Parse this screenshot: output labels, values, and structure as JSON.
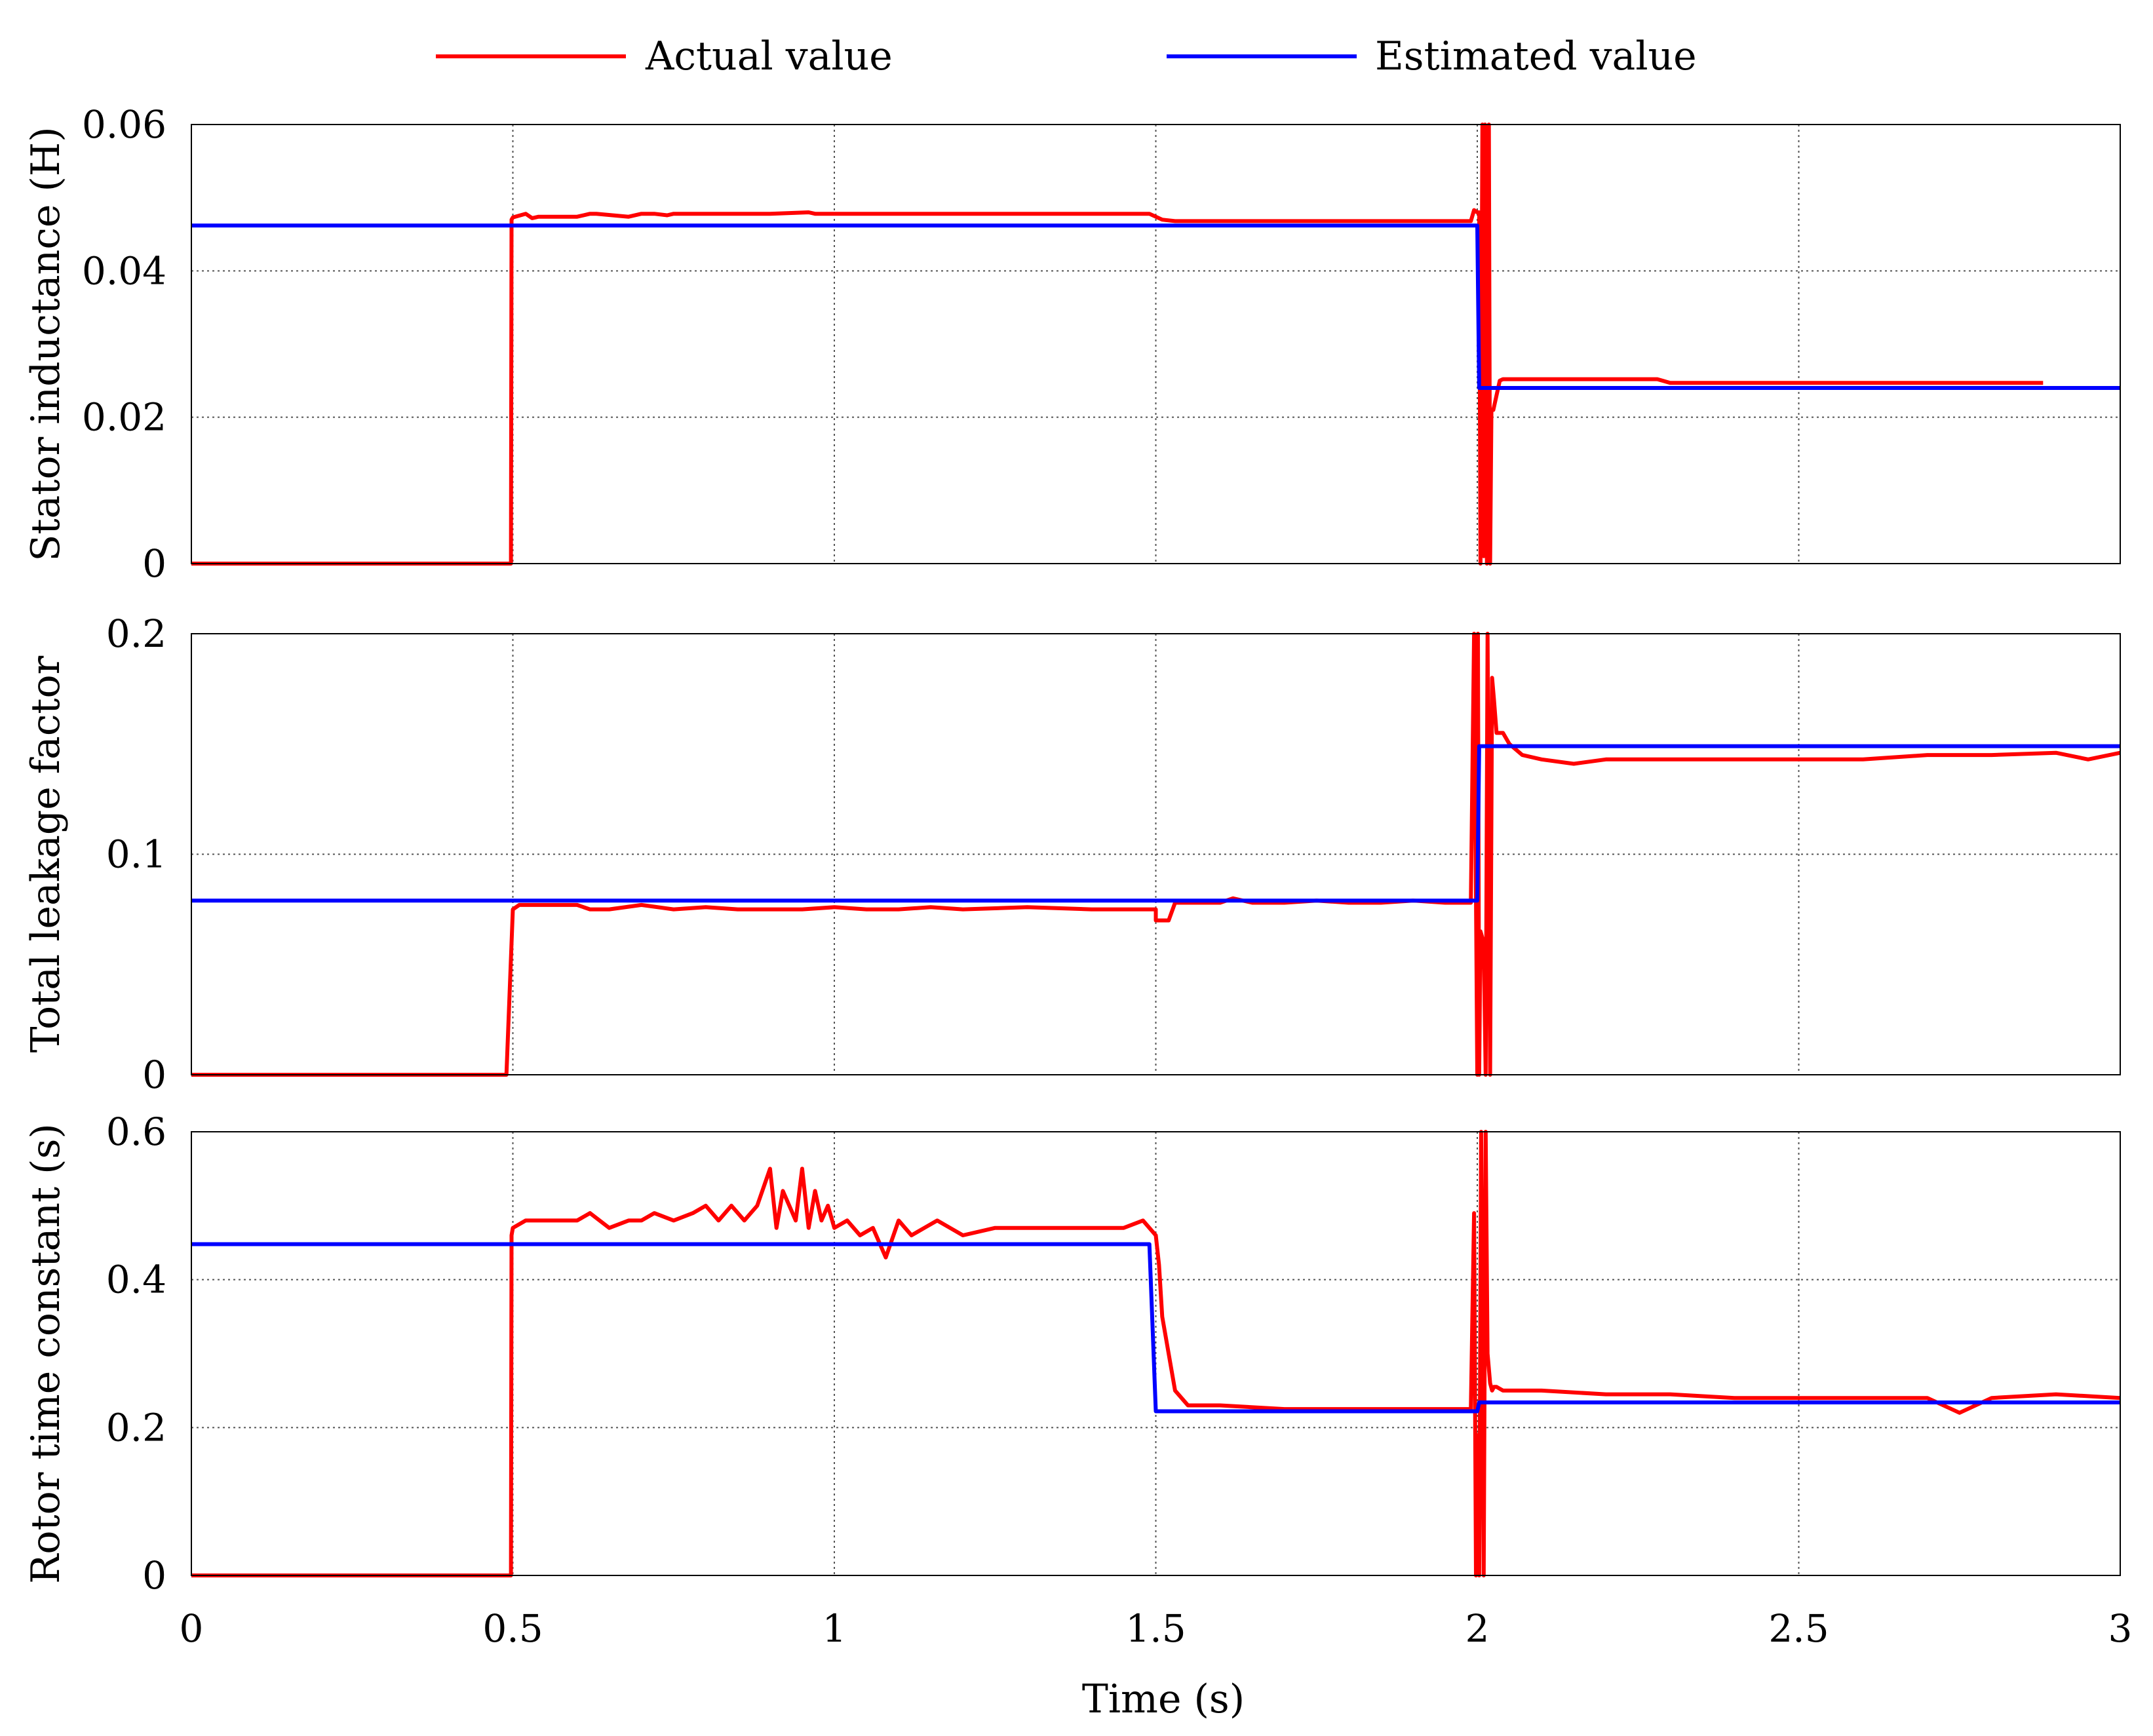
{
  "legend": {
    "actual_label": "Actual value",
    "estimated_label": "Estimated value"
  },
  "colors": {
    "actual": "#ff0000",
    "estimated": "#0000ff",
    "grid": "#555555",
    "frame": "#000000"
  },
  "xaxis": {
    "label": "Time  (s)",
    "ticks": [
      "0",
      "0.5",
      "1",
      "1.5",
      "2",
      "2.5",
      "3"
    ],
    "tick_values": [
      0,
      0.5,
      1,
      1.5,
      2,
      2.5,
      3
    ],
    "range": [
      0,
      3
    ]
  },
  "chart_data": [
    {
      "type": "line",
      "ylabel": "Stator inductance (H)",
      "ylim": [
        0,
        0.06
      ],
      "yticks": [
        "0",
        "0.02",
        "0.04",
        "0.06"
      ],
      "ytick_values": [
        0,
        0.02,
        0.04,
        0.06
      ],
      "grid": true,
      "series": [
        {
          "name": "Actual value",
          "x": [
            0,
            0.497,
            0.498,
            0.5,
            0.52,
            0.53,
            0.54,
            0.55,
            0.6,
            0.62,
            0.63,
            0.68,
            0.7,
            0.72,
            0.74,
            0.75,
            0.8,
            0.9,
            0.96,
            0.97,
            0.98,
            1.2,
            1.4,
            1.49,
            1.5,
            1.51,
            1.53,
            1.6,
            1.8,
            1.99,
            1.995,
            2.0,
            2.003,
            2.005,
            2.008,
            2.01,
            2.012,
            2.015,
            2.018,
            2.02,
            2.022,
            2.025,
            2.03,
            2.035,
            2.04,
            2.1,
            2.28,
            2.3,
            2.6,
            2.88
          ],
          "y": [
            0,
            0,
            0.047,
            0.0473,
            0.0478,
            0.0472,
            0.0474,
            0.0474,
            0.0474,
            0.0478,
            0.0478,
            0.0474,
            0.0478,
            0.0478,
            0.0476,
            0.0478,
            0.0478,
            0.0478,
            0.048,
            0.0478,
            0.0478,
            0.0478,
            0.0478,
            0.0478,
            0.0474,
            0.047,
            0.0468,
            0.0468,
            0.0468,
            0.0468,
            0.0483,
            0.048,
            0.048,
            0.0,
            0.06,
            0.001,
            0.06,
            0.0,
            0.06,
            0.0,
            0.021,
            0.021,
            0.023,
            0.025,
            0.0252,
            0.0252,
            0.0252,
            0.0247,
            0.0247,
            0.0247
          ]
        },
        {
          "name": "Estimated value",
          "x": [
            0,
            2.0,
            2.003,
            3.0
          ],
          "y": [
            0.0462,
            0.0462,
            0.024,
            0.024
          ]
        }
      ]
    },
    {
      "type": "line",
      "ylabel": "Total leakage factor",
      "ylim": [
        0,
        0.2
      ],
      "yticks": [
        "0",
        "0.1",
        "0.2"
      ],
      "ytick_values": [
        0,
        0.1,
        0.2
      ],
      "grid": true,
      "series": [
        {
          "name": "Actual value",
          "x": [
            0,
            0.49,
            0.5,
            0.51,
            0.6,
            0.62,
            0.65,
            0.7,
            0.75,
            0.8,
            0.85,
            0.9,
            0.95,
            1.0,
            1.05,
            1.1,
            1.15,
            1.2,
            1.3,
            1.4,
            1.5,
            1.5,
            1.52,
            1.53,
            1.55,
            1.6,
            1.62,
            1.65,
            1.7,
            1.75,
            1.8,
            1.85,
            1.9,
            1.95,
            1.99,
            1.995,
            2.0,
            2.001,
            2.003,
            2.005,
            2.01,
            2.013,
            2.016,
            2.02,
            2.023,
            2.026,
            2.03,
            2.04,
            2.05,
            2.07,
            2.1,
            2.15,
            2.2,
            2.3,
            2.4,
            2.5,
            2.6,
            2.7,
            2.8,
            2.9,
            2.95,
            3.0
          ],
          "y": [
            0,
            0,
            0.075,
            0.077,
            0.077,
            0.075,
            0.075,
            0.077,
            0.075,
            0.076,
            0.075,
            0.075,
            0.075,
            0.076,
            0.075,
            0.075,
            0.076,
            0.075,
            0.076,
            0.075,
            0.075,
            0.07,
            0.07,
            0.078,
            0.078,
            0.078,
            0.08,
            0.078,
            0.078,
            0.079,
            0.078,
            0.078,
            0.079,
            0.078,
            0.078,
            0.2,
            0.0,
            0.2,
            0.0,
            0.065,
            0.06,
            0.0,
            0.2,
            0.0,
            0.18,
            0.17,
            0.155,
            0.155,
            0.15,
            0.145,
            0.143,
            0.141,
            0.143,
            0.143,
            0.143,
            0.143,
            0.143,
            0.145,
            0.145,
            0.146,
            0.143,
            0.146
          ]
        },
        {
          "name": "Estimated value",
          "x": [
            0,
            2.0,
            2.003,
            3.0
          ],
          "y": [
            0.079,
            0.079,
            0.149,
            0.149
          ]
        }
      ]
    },
    {
      "type": "line",
      "ylabel": "Rotor time constant (s)",
      "ylim": [
        0,
        0.6
      ],
      "yticks": [
        "0",
        "0.2",
        "0.4",
        "0.6"
      ],
      "ytick_values": [
        0,
        0.2,
        0.4,
        0.6
      ],
      "grid": true,
      "series": [
        {
          "name": "Actual value",
          "x": [
            0,
            0.497,
            0.498,
            0.5,
            0.52,
            0.55,
            0.6,
            0.62,
            0.65,
            0.68,
            0.7,
            0.72,
            0.75,
            0.78,
            0.8,
            0.82,
            0.84,
            0.86,
            0.88,
            0.9,
            0.91,
            0.92,
            0.93,
            0.94,
            0.95,
            0.96,
            0.97,
            0.98,
            0.99,
            1.0,
            1.02,
            1.04,
            1.06,
            1.08,
            1.1,
            1.12,
            1.14,
            1.16,
            1.18,
            1.2,
            1.25,
            1.3,
            1.35,
            1.4,
            1.45,
            1.48,
            1.5,
            1.505,
            1.51,
            1.52,
            1.53,
            1.55,
            1.6,
            1.7,
            1.8,
            1.9,
            1.99,
            1.995,
            1.998,
            2.0,
            2.003,
            2.006,
            2.01,
            2.013,
            2.016,
            2.02,
            2.023,
            2.026,
            2.03,
            2.04,
            2.06,
            2.1,
            2.2,
            2.3,
            2.4,
            2.5,
            2.6,
            2.7,
            2.75,
            2.8,
            2.9,
            3.0
          ],
          "y": [
            0,
            0,
            0.46,
            0.47,
            0.48,
            0.48,
            0.48,
            0.49,
            0.47,
            0.48,
            0.48,
            0.49,
            0.48,
            0.49,
            0.5,
            0.48,
            0.5,
            0.48,
            0.5,
            0.55,
            0.47,
            0.52,
            0.5,
            0.48,
            0.55,
            0.47,
            0.52,
            0.48,
            0.5,
            0.47,
            0.48,
            0.46,
            0.47,
            0.43,
            0.48,
            0.46,
            0.47,
            0.48,
            0.47,
            0.46,
            0.47,
            0.47,
            0.47,
            0.47,
            0.47,
            0.48,
            0.46,
            0.42,
            0.35,
            0.3,
            0.25,
            0.23,
            0.23,
            0.225,
            0.225,
            0.225,
            0.225,
            0.49,
            0.0,
            0.19,
            0.0,
            0.6,
            0.0,
            0.6,
            0.3,
            0.26,
            0.25,
            0.255,
            0.255,
            0.25,
            0.25,
            0.25,
            0.245,
            0.245,
            0.24,
            0.24,
            0.24,
            0.24,
            0.22,
            0.24,
            0.245,
            0.24
          ]
        },
        {
          "name": "Estimated value",
          "x": [
            0,
            1.49,
            1.5,
            2.0,
            2.003,
            3.0
          ],
          "y": [
            0.448,
            0.448,
            0.222,
            0.222,
            0.234,
            0.234
          ]
        }
      ]
    }
  ]
}
